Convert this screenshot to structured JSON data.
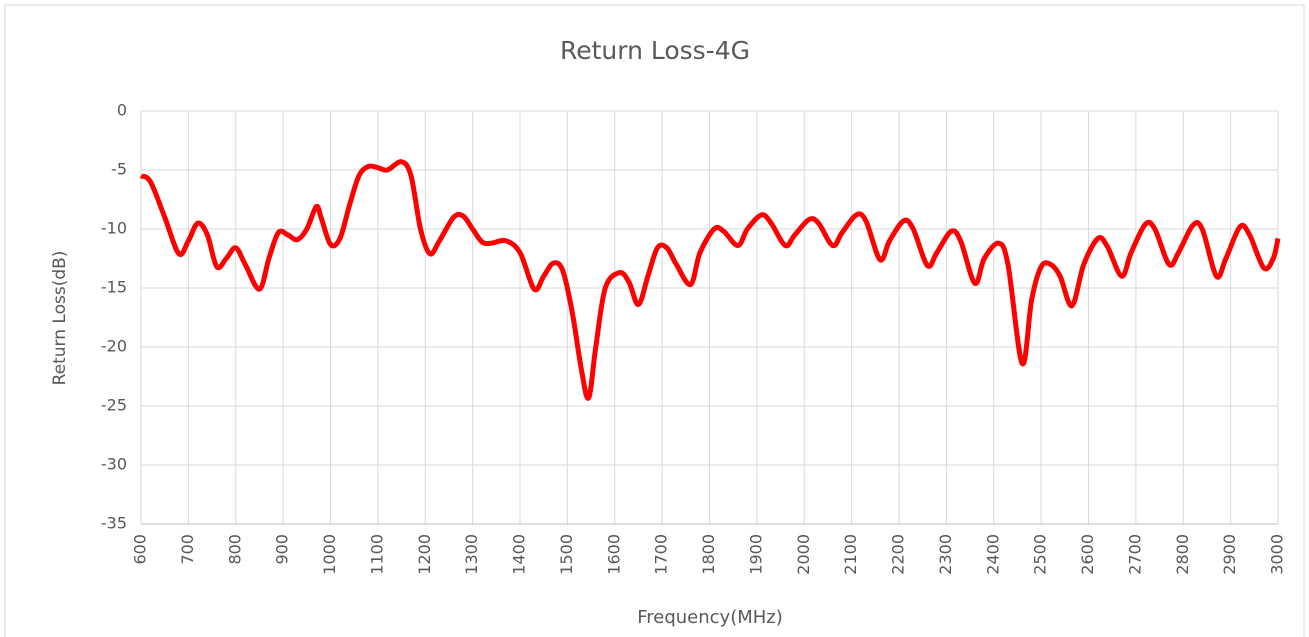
{
  "chart_data": {
    "type": "line",
    "title": "Return Loss-4G",
    "x_label": "Frequency(MHz)",
    "y_label": "Return Loss(dB)",
    "x": [
      600,
      620,
      650,
      680,
      700,
      720,
      740,
      760,
      780,
      800,
      820,
      850,
      870,
      890,
      910,
      930,
      950,
      970,
      980,
      1000,
      1020,
      1040,
      1060,
      1080,
      1100,
      1120,
      1150,
      1170,
      1190,
      1210,
      1230,
      1260,
      1280,
      1300,
      1320,
      1340,
      1370,
      1400,
      1430,
      1450,
      1470,
      1490,
      1510,
      1530,
      1545,
      1560,
      1580,
      1610,
      1630,
      1650,
      1670,
      1690,
      1710,
      1730,
      1760,
      1780,
      1810,
      1830,
      1860,
      1880,
      1910,
      1930,
      1960,
      1980,
      2010,
      2030,
      2060,
      2080,
      2110,
      2130,
      2160,
      2180,
      2210,
      2230,
      2260,
      2280,
      2310,
      2330,
      2360,
      2380,
      2410,
      2430,
      2460,
      2480,
      2500,
      2520,
      2540,
      2565,
      2590,
      2620,
      2640,
      2670,
      2690,
      2720,
      2740,
      2770,
      2790,
      2820,
      2840,
      2870,
      2890,
      2920,
      2940,
      2970,
      2990,
      3000
    ],
    "series": [
      {
        "name": "Return Loss",
        "color": "#ff0000",
        "values": [
          -5.5,
          -6,
          -9,
          -12.1,
          -11,
          -9.5,
          -10.5,
          -13.2,
          -12.5,
          -11.6,
          -13,
          -15.1,
          -12.5,
          -10.3,
          -10.5,
          -10.9,
          -10,
          -8.1,
          -9,
          -11.3,
          -10.8,
          -8,
          -5.5,
          -4.7,
          -4.8,
          -5,
          -4.3,
          -5.5,
          -10,
          -12.1,
          -11,
          -9,
          -8.9,
          -10,
          -11.1,
          -11.2,
          -11,
          -12,
          -15.1,
          -14,
          -12.9,
          -13.5,
          -17,
          -22,
          -24.3,
          -20,
          -15,
          -13.7,
          -14.5,
          -16.4,
          -14,
          -11.6,
          -11.6,
          -13,
          -14.7,
          -12,
          -10,
          -10.2,
          -11.4,
          -10,
          -8.8,
          -9.5,
          -11.4,
          -10.5,
          -9.2,
          -9.5,
          -11.4,
          -10.3,
          -8.8,
          -9.3,
          -12.6,
          -11,
          -9.3,
          -10,
          -13.1,
          -12,
          -10.2,
          -11,
          -14.6,
          -12.5,
          -11.2,
          -13,
          -21.4,
          -16,
          -13.2,
          -13,
          -14,
          -16.5,
          -13,
          -10.8,
          -11.5,
          -14,
          -12,
          -9.6,
          -10,
          -13,
          -12,
          -9.7,
          -10,
          -14,
          -12.5,
          -9.8,
          -10.5,
          -13.3,
          -12.5,
          -10.8
        ]
      }
    ],
    "xlim": [
      600,
      3000
    ],
    "xticks": [
      600,
      700,
      800,
      900,
      1000,
      1100,
      1200,
      1300,
      1400,
      1500,
      1600,
      1700,
      1800,
      1900,
      2000,
      2100,
      2200,
      2300,
      2400,
      2500,
      2600,
      2700,
      2800,
      2900,
      3000
    ],
    "ylim": [
      -35,
      0
    ],
    "yticks": [
      0,
      -5,
      -10,
      -15,
      -20,
      -25,
      -30,
      -35
    ],
    "grid": true
  }
}
